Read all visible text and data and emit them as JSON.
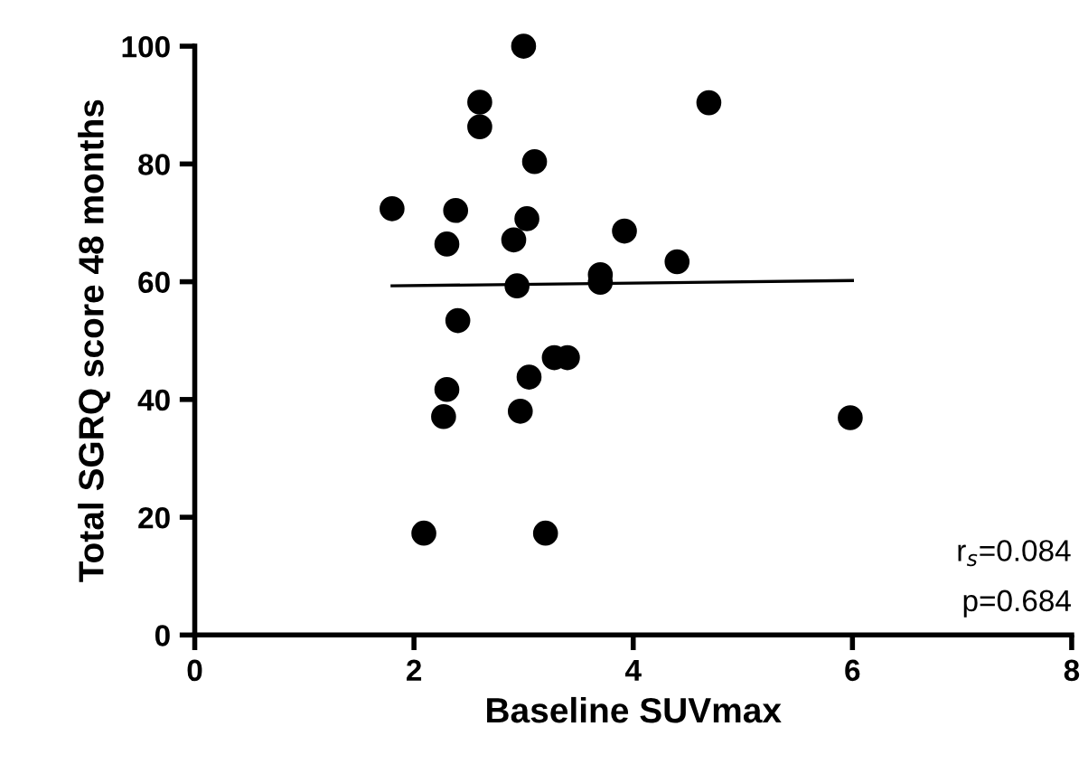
{
  "chart_data": {
    "type": "scatter",
    "xlabel": "Baseline SUVmax",
    "ylabel": "Total SGRQ score 48 months",
    "xlim": [
      0,
      8
    ],
    "ylim": [
      0,
      100
    ],
    "xticks": [
      0,
      2,
      4,
      6,
      8
    ],
    "yticks": [
      0,
      20,
      40,
      60,
      80,
      100
    ],
    "grid": false,
    "marker": "circle",
    "series": [
      {
        "color": "#000000",
        "x": [
          3.0,
          2.6,
          2.6,
          3.1,
          1.8,
          2.38,
          3.03,
          2.3,
          2.91,
          3.92,
          2.94,
          3.7,
          3.7,
          2.4,
          3.28,
          3.4,
          3.05,
          2.3,
          2.27,
          2.97,
          2.09,
          3.2,
          4.69,
          4.4,
          5.98
        ],
        "values": [
          100,
          90.5,
          86.3,
          80.4,
          72.4,
          72.1,
          70.7,
          66.4,
          67.1,
          68.6,
          59.3,
          61.2,
          59.9,
          53.4,
          47.1,
          47.1,
          43.8,
          41.7,
          37.1,
          38.0,
          17.3,
          17.3,
          90.4,
          63.4,
          36.9
        ]
      },
      {
        "type": "line",
        "color": "#000000",
        "marker": "none",
        "x": [
          1.8,
          6.0
        ],
        "values": [
          59.3,
          60.2
        ]
      }
    ],
    "annotations": [
      "r$_{s}$=0.084",
      "p=0.684"
    ]
  }
}
